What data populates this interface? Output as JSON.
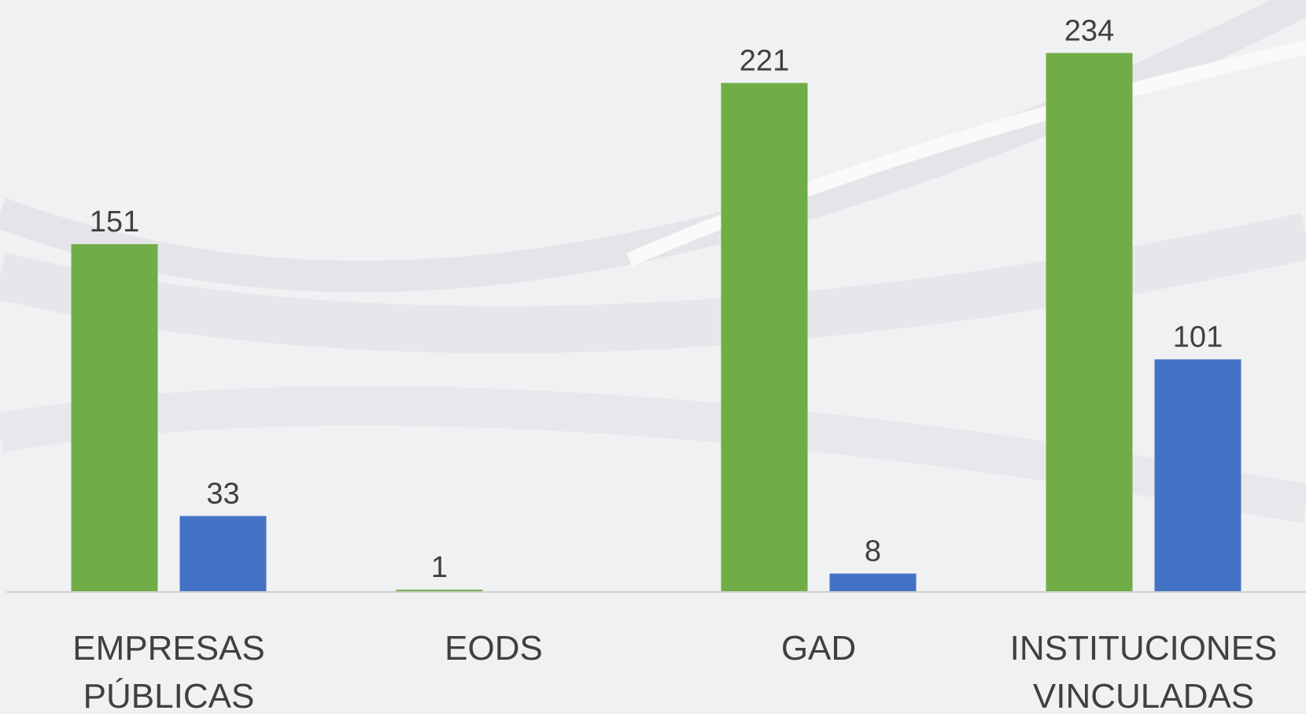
{
  "chart_data": {
    "type": "bar",
    "categories": [
      "EMPRESAS PÚBLICAS",
      "EODS",
      "GAD",
      "INSTITUCIONES VINCULADAS"
    ],
    "series": [
      {
        "color": "#70ad47",
        "values": [
          151,
          1,
          221,
          234
        ]
      },
      {
        "color": "#4472c4",
        "values": [
          33,
          null,
          8,
          101
        ]
      }
    ],
    "ylim": [
      0,
      257
    ]
  }
}
